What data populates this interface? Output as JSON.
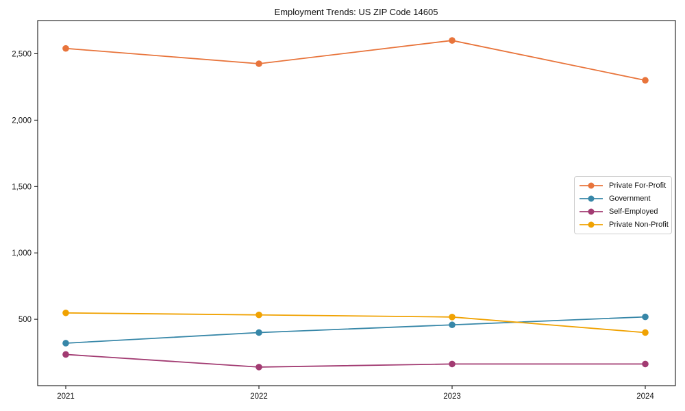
{
  "chart_data": {
    "type": "line",
    "title": "Employment Trends: US ZIP Code 14605",
    "xlabel": "",
    "ylabel": "",
    "x": [
      "2021",
      "2022",
      "2023",
      "2024"
    ],
    "series": [
      {
        "name": "Private For-Profit",
        "color": "#E8743B",
        "values": [
          2540,
          2425,
          2600,
          2300
        ]
      },
      {
        "name": "Government",
        "color": "#3787A8",
        "values": [
          320,
          400,
          458,
          518
        ]
      },
      {
        "name": "Self-Employed",
        "color": "#A23B72",
        "values": [
          235,
          140,
          163,
          163
        ]
      },
      {
        "name": "Private Non-Profit",
        "color": "#F0A202",
        "values": [
          548,
          533,
          517,
          400
        ]
      }
    ],
    "ylim": [
      0,
      2750
    ],
    "yticks": [
      500,
      1000,
      1500,
      2000,
      2500
    ],
    "ytick_labels": [
      "500",
      "1,000",
      "1,500",
      "2,000",
      "2,500"
    ],
    "grid": false,
    "frame": true,
    "axis_color": "#000000",
    "tick_label_color": "#111111",
    "legend": {
      "position": "right-middle-inside",
      "border_color": "#cccccc",
      "entries": [
        "Private For-Profit",
        "Government",
        "Self-Employed",
        "Private Non-Profit"
      ]
    }
  }
}
